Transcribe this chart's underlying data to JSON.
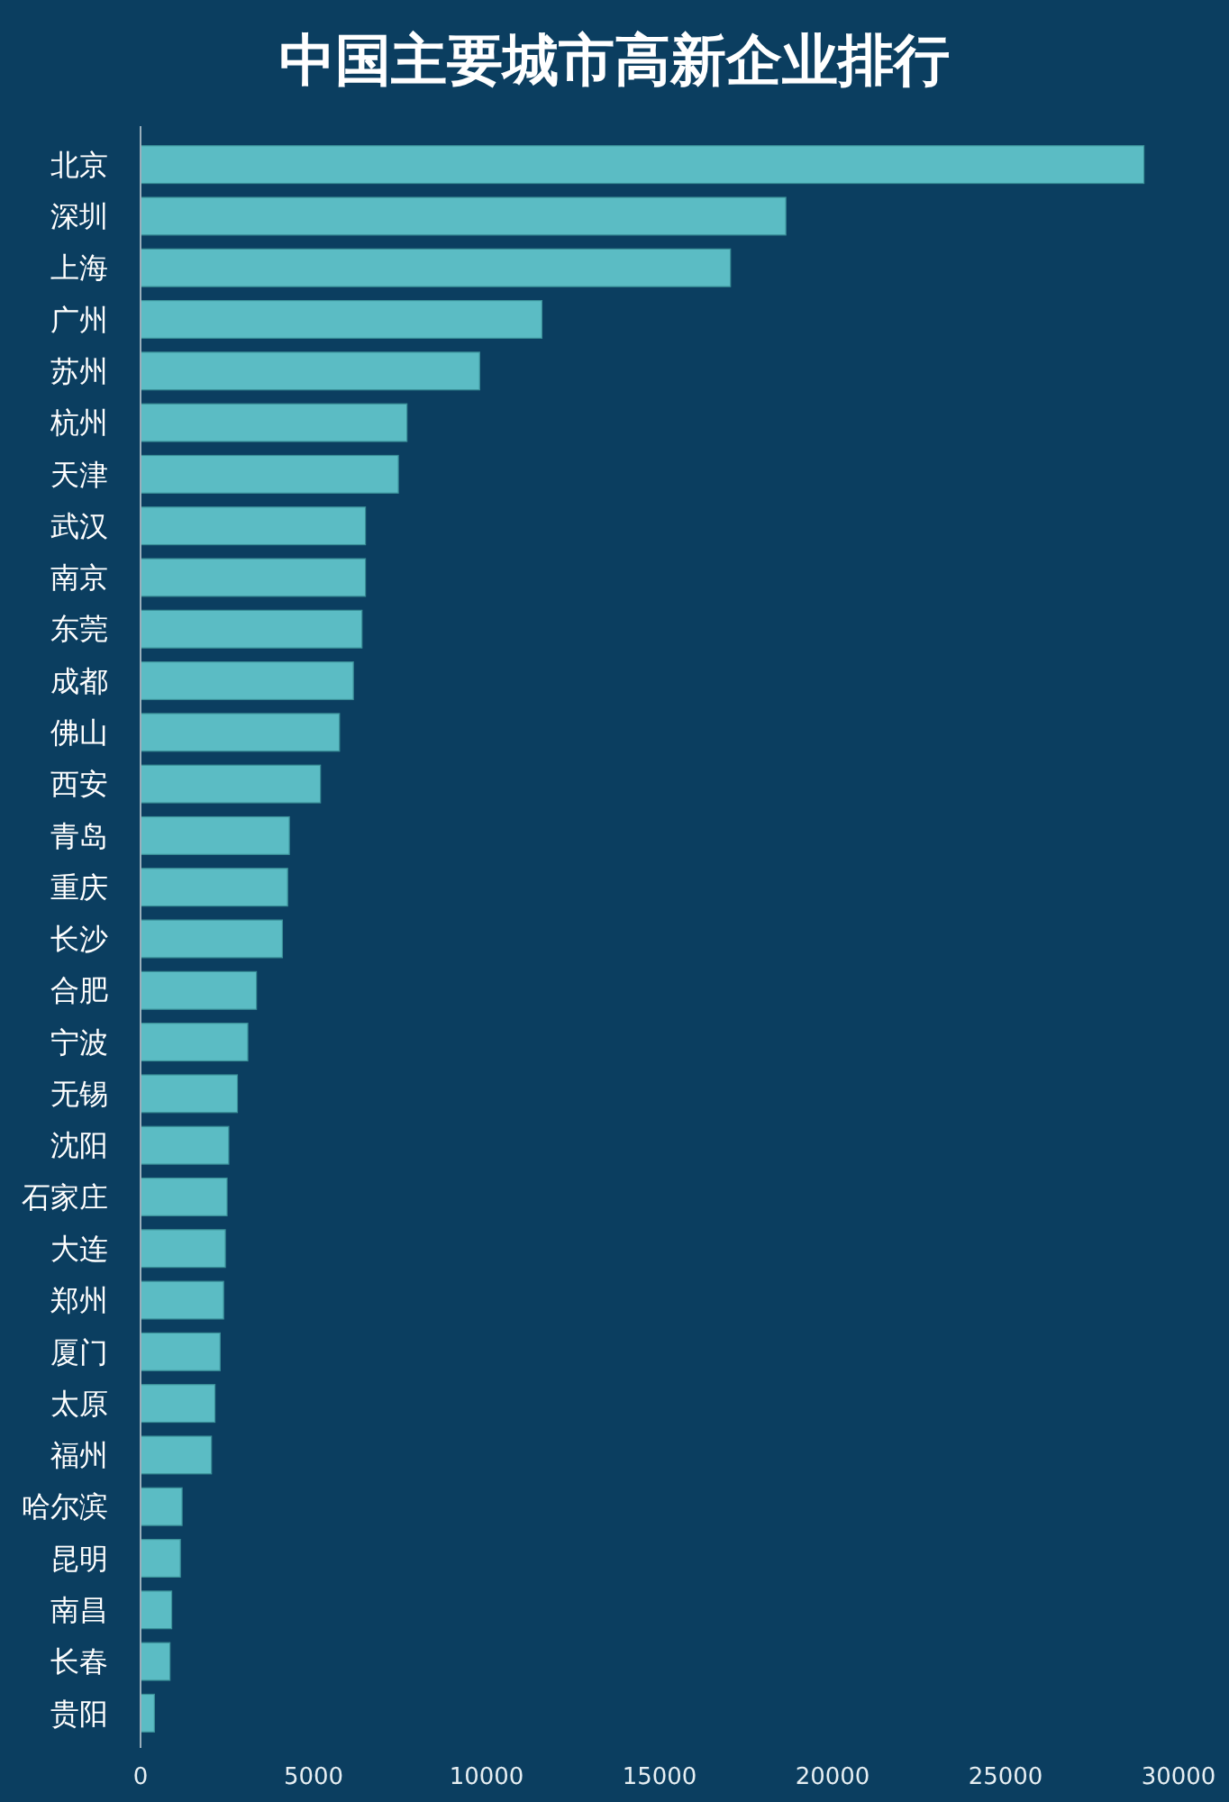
{
  "chart_data": {
    "type": "bar",
    "orientation": "horizontal",
    "title": "中国主要城市高新企业排行",
    "categories": [
      "北京",
      "深圳",
      "上海",
      "广州",
      "苏州",
      "杭州",
      "天津",
      "武汉",
      "南京",
      "东莞",
      "成都",
      "佛山",
      "西安",
      "青岛",
      "重庆",
      "长沙",
      "合肥",
      "宁波",
      "无锡",
      "沈阳",
      "石家庄",
      "大连",
      "郑州",
      "厦门",
      "太原",
      "福州",
      "哈尔滨",
      "昆明",
      "南昌",
      "长春",
      "贵阳"
    ],
    "values": [
      29000,
      18650,
      17050,
      11600,
      9800,
      7700,
      7450,
      6500,
      6500,
      6400,
      6150,
      5750,
      5200,
      4300,
      4250,
      4100,
      3350,
      3100,
      2800,
      2550,
      2500,
      2450,
      2400,
      2300,
      2150,
      2050,
      1200,
      1150,
      900,
      850,
      400
    ],
    "color": "#5bbcc4",
    "xlim": [
      0,
      30000
    ],
    "xticks": [
      0,
      5000,
      10000,
      15000,
      20000,
      25000,
      30000
    ],
    "grid": false
  }
}
